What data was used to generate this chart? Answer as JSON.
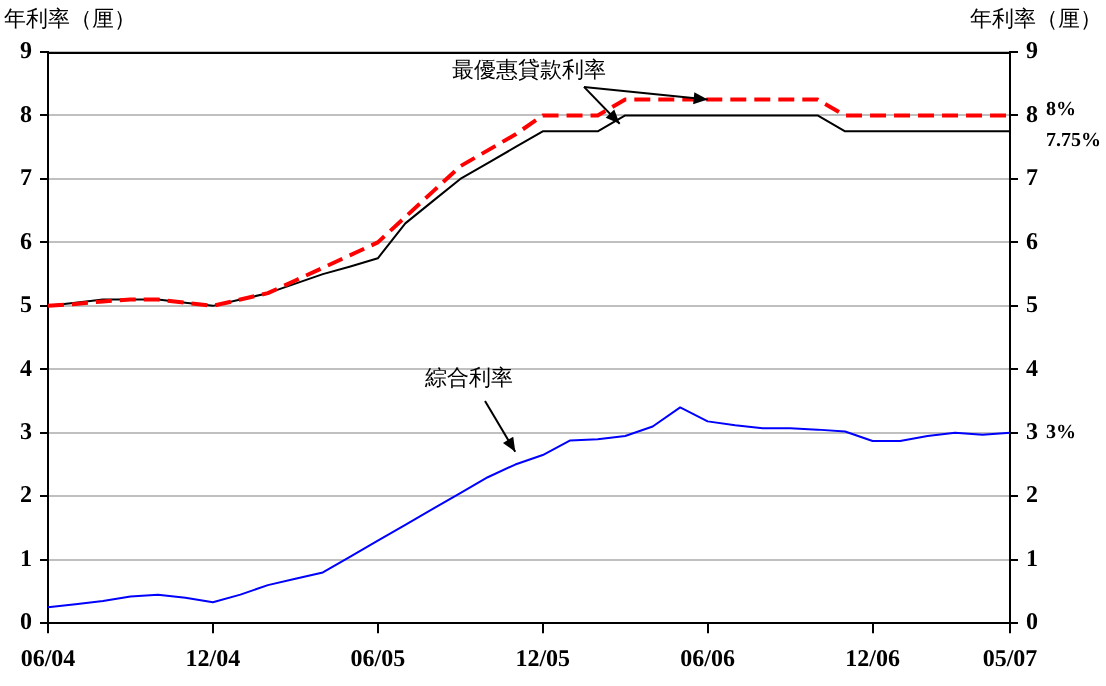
{
  "chart_data": {
    "type": "line",
    "ylabel": "年利率（厘）",
    "y2label": "年利率（厘）",
    "categories": [
      "06/04",
      null,
      null,
      null,
      null,
      null,
      "12/04",
      null,
      null,
      null,
      null,
      null,
      "06/05",
      null,
      null,
      null,
      null,
      null,
      "12/05",
      null,
      null,
      null,
      null,
      null,
      "06/06",
      null,
      null,
      null,
      null,
      null,
      "12/06",
      null,
      null,
      null,
      null,
      "05/07"
    ],
    "series": [
      {
        "color": "#ff0000",
        "line_style": "dashed",
        "values": [
          5.0,
          5.03,
          5.07,
          5.1,
          5.1,
          5.05,
          5.0,
          5.1,
          5.2,
          5.4,
          5.6,
          5.8,
          6.0,
          6.4,
          6.8,
          7.2,
          7.45,
          7.7,
          8.0,
          8.0,
          8.0,
          8.25,
          8.25,
          8.25,
          8.25,
          8.25,
          8.25,
          8.25,
          8.25,
          8.0,
          8.0,
          8.0,
          8.0,
          8.0,
          8.0,
          8.0
        ]
      },
      {
        "color": "#000000",
        "line_style": "solid",
        "values": [
          5.0,
          5.05,
          5.1,
          5.1,
          5.1,
          5.05,
          5.0,
          5.1,
          5.2,
          5.35,
          5.5,
          5.62,
          5.75,
          6.3,
          6.65,
          7.0,
          7.25,
          7.5,
          7.75,
          7.75,
          7.75,
          8.0,
          8.0,
          8.0,
          8.0,
          8.0,
          8.0,
          8.0,
          8.0,
          7.75,
          7.75,
          7.75,
          7.75,
          7.75,
          7.75,
          7.75
        ]
      },
      {
        "color": "#0000ff",
        "line_style": "solid",
        "values": [
          0.25,
          0.3,
          0.35,
          0.42,
          0.45,
          0.4,
          0.33,
          0.45,
          0.6,
          0.7,
          0.8,
          1.05,
          1.3,
          1.55,
          1.8,
          2.05,
          2.3,
          2.5,
          2.65,
          2.88,
          2.9,
          2.95,
          3.1,
          3.4,
          3.18,
          3.12,
          3.07,
          3.07,
          3.05,
          3.02,
          2.87,
          2.87,
          2.95,
          3.0,
          2.97,
          3.0
        ]
      }
    ],
    "ylim": [
      0,
      9
    ],
    "yticks": [
      0,
      1,
      2,
      3,
      4,
      5,
      6,
      7,
      8,
      9
    ],
    "y2lim": [
      0,
      9
    ],
    "y2ticks": [
      0,
      1,
      2,
      3,
      4,
      5,
      6,
      7,
      8,
      9
    ],
    "grid": "y",
    "legend": false,
    "marker": "none",
    "annotations": [
      {
        "text": "最優惠貸款利率",
        "x": "06/06",
        "y": 8.25
      },
      "綜合利率",
      {
        "text": "8%",
        "x": "05/07",
        "y": 8
      },
      {
        "text": "7.75%",
        "x": "05/07",
        "y": 7.75
      },
      {
        "text": "3%",
        "x": "05/07",
        "y": 3
      }
    ]
  }
}
